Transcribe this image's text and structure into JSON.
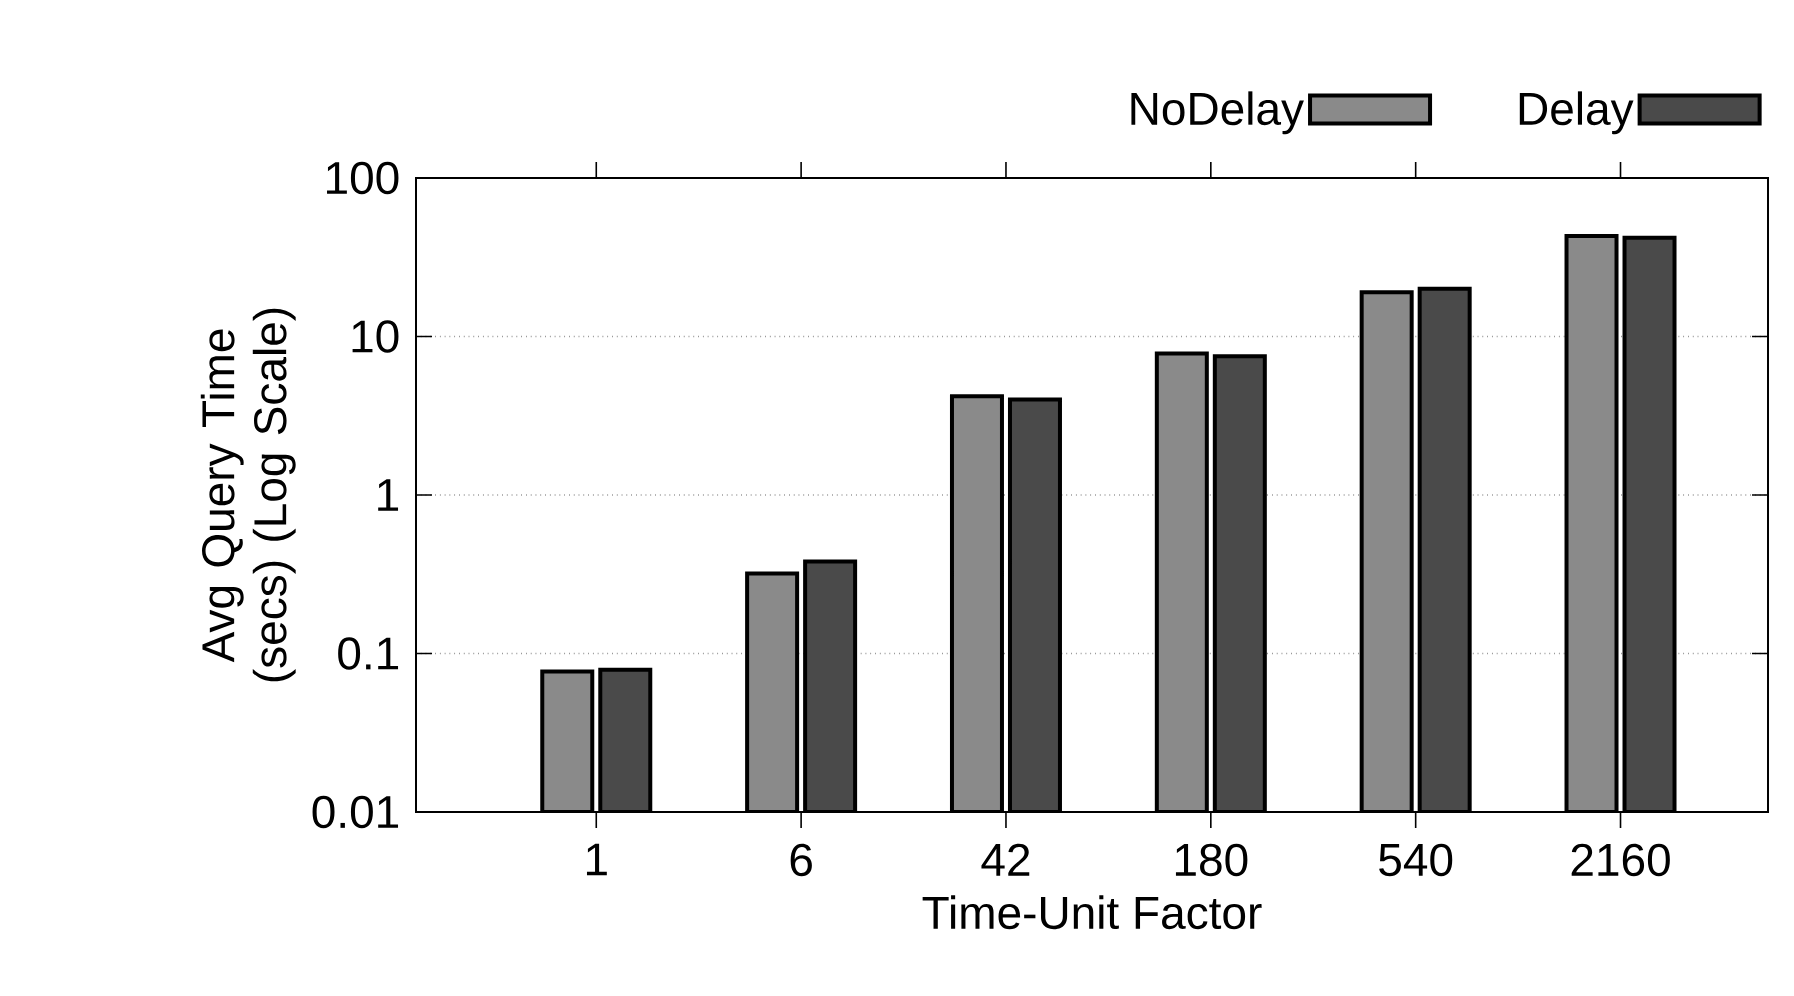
{
  "chart_data": {
    "type": "bar",
    "xlabel": "Time-Unit Factor",
    "ylabel": "Avg Query Time (secs) (Log Scale)",
    "categories": [
      "1",
      "6",
      "42",
      "180",
      "540",
      "2160"
    ],
    "series": [
      {
        "name": "NoDelay",
        "color": "#8a8a8a",
        "values": [
          0.077,
          0.32,
          4.2,
          7.8,
          19,
          43
        ]
      },
      {
        "name": "Delay",
        "color": "#4a4a4a",
        "values": [
          0.079,
          0.38,
          4.0,
          7.5,
          20,
          42
        ]
      }
    ],
    "log": "y",
    "ylim": [
      0.01,
      100
    ],
    "yticks": [
      0.01,
      0.1,
      1,
      10,
      100
    ],
    "grid": "y",
    "legend": "top right"
  }
}
